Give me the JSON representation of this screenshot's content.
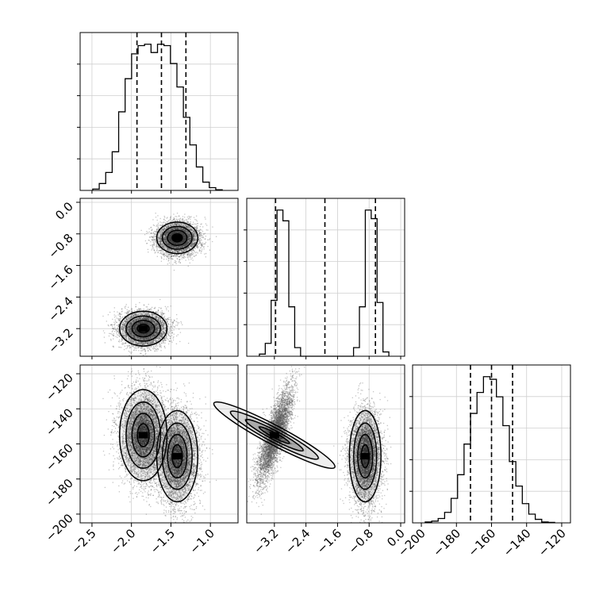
{
  "chart_data": {
    "type": "corner",
    "grid": true,
    "parameters": [
      {
        "range": [
          -2.65,
          -0.65
        ],
        "ticks": [
          "-2.5",
          "-2.0",
          "-1.5",
          "-1.0"
        ],
        "tick_values": [
          -2.5,
          -2.0,
          -1.5,
          -1.0
        ],
        "quantiles": [
          -1.93,
          -1.62,
          -1.31
        ]
      },
      {
        "range": [
          -3.9,
          0.1
        ],
        "ticks": [
          "-3.2",
          "-2.4",
          "-1.6",
          "-0.8",
          "0.0"
        ],
        "tick_values": [
          -3.2,
          -2.4,
          -1.6,
          -0.8,
          0.0
        ],
        "quantiles": [
          -3.17,
          -1.92,
          -0.64
        ]
      },
      {
        "range": [
          -205,
          -115
        ],
        "ticks": [
          "-200",
          "-180",
          "-160",
          "-140",
          "-120"
        ],
        "tick_values": [
          -200,
          -180,
          -160,
          -140,
          -120
        ],
        "quantiles": [
          -172,
          -160,
          -148
        ]
      }
    ],
    "histograms": [
      [
        0.01,
        0.05,
        0.13,
        0.28,
        0.57,
        0.81,
        0.99,
        1.05,
        1.06,
        1.0,
        1.06,
        1.05,
        0.92,
        0.75,
        0.53,
        0.33,
        0.17,
        0.06,
        0.02,
        0.005
      ],
      [
        0.01,
        0.06,
        0.26,
        0.68,
        0.63,
        0.23,
        0.04,
        0.0,
        0.0,
        0.0,
        0.0,
        0.0,
        0.0,
        0.0,
        0.0,
        0.0,
        0.04,
        0.23,
        0.68,
        0.64,
        0.25,
        0.02
      ],
      [
        0.01,
        0.02,
        0.05,
        0.12,
        0.28,
        0.55,
        0.9,
        1.25,
        1.49,
        1.67,
        1.64,
        1.44,
        1.11,
        0.7,
        0.42,
        0.22,
        0.1,
        0.04,
        0.01,
        0.005
      ]
    ],
    "modes": [
      {
        "mean": [
          -1.42,
          -0.9,
          -167
        ],
        "sd": [
          0.13,
          0.2,
          13
        ],
        "weight": 0.5
      },
      {
        "mean": [
          -1.85,
          -3.2,
          -155
        ],
        "sd": [
          0.15,
          0.22,
          13
        ],
        "weight": 0.5
      }
    ]
  }
}
